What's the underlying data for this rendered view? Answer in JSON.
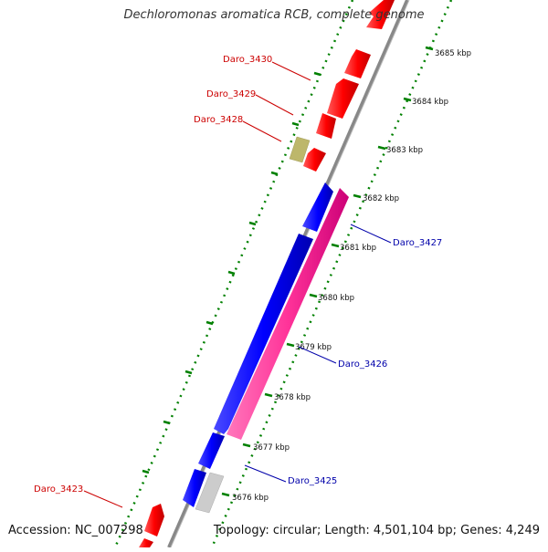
{
  "title": "Dechloromonas aromatica RCB, complete genome",
  "footer": {
    "accession": "Accession: NC_007298",
    "topology": "Topology: circular; Length: 4,501,104 bp; Genes: 4,249"
  },
  "colors": {
    "forward_gene": "#ff0000",
    "reverse_gene": "#0000ff",
    "highlight_gene": "#ff3399",
    "other_gene": "#bdb76b",
    "grey_gene": "#cccccc",
    "backbone": "#888888",
    "tick": "#008000",
    "forward_label": "#cc0000",
    "reverse_label": "#0000aa"
  },
  "ruler": {
    "unit": "kbp",
    "ticks": [
      {
        "kbp": 3676,
        "label": "3676 kbp"
      },
      {
        "kbp": 3677,
        "label": "3677 kbp"
      },
      {
        "kbp": 3678,
        "label": "3678 kbp"
      },
      {
        "kbp": 3679,
        "label": "3679 kbp"
      },
      {
        "kbp": 3680,
        "label": "3680 kbp"
      },
      {
        "kbp": 3681,
        "label": "3681 kbp"
      },
      {
        "kbp": 3682,
        "label": "3682 kbp"
      },
      {
        "kbp": 3683,
        "label": "3683 kbp"
      },
      {
        "kbp": 3684,
        "label": "3684 kbp"
      },
      {
        "kbp": 3685,
        "label": "3685 kbp"
      }
    ]
  },
  "gene_labels": [
    {
      "name": "Daro_3430",
      "strand": "forward"
    },
    {
      "name": "Daro_3429",
      "strand": "forward"
    },
    {
      "name": "Daro_3428",
      "strand": "forward"
    },
    {
      "name": "Daro_3427",
      "strand": "reverse"
    },
    {
      "name": "Daro_3426",
      "strand": "reverse"
    },
    {
      "name": "Daro_3425",
      "strand": "reverse"
    },
    {
      "name": "Daro_3423",
      "strand": "forward"
    }
  ]
}
